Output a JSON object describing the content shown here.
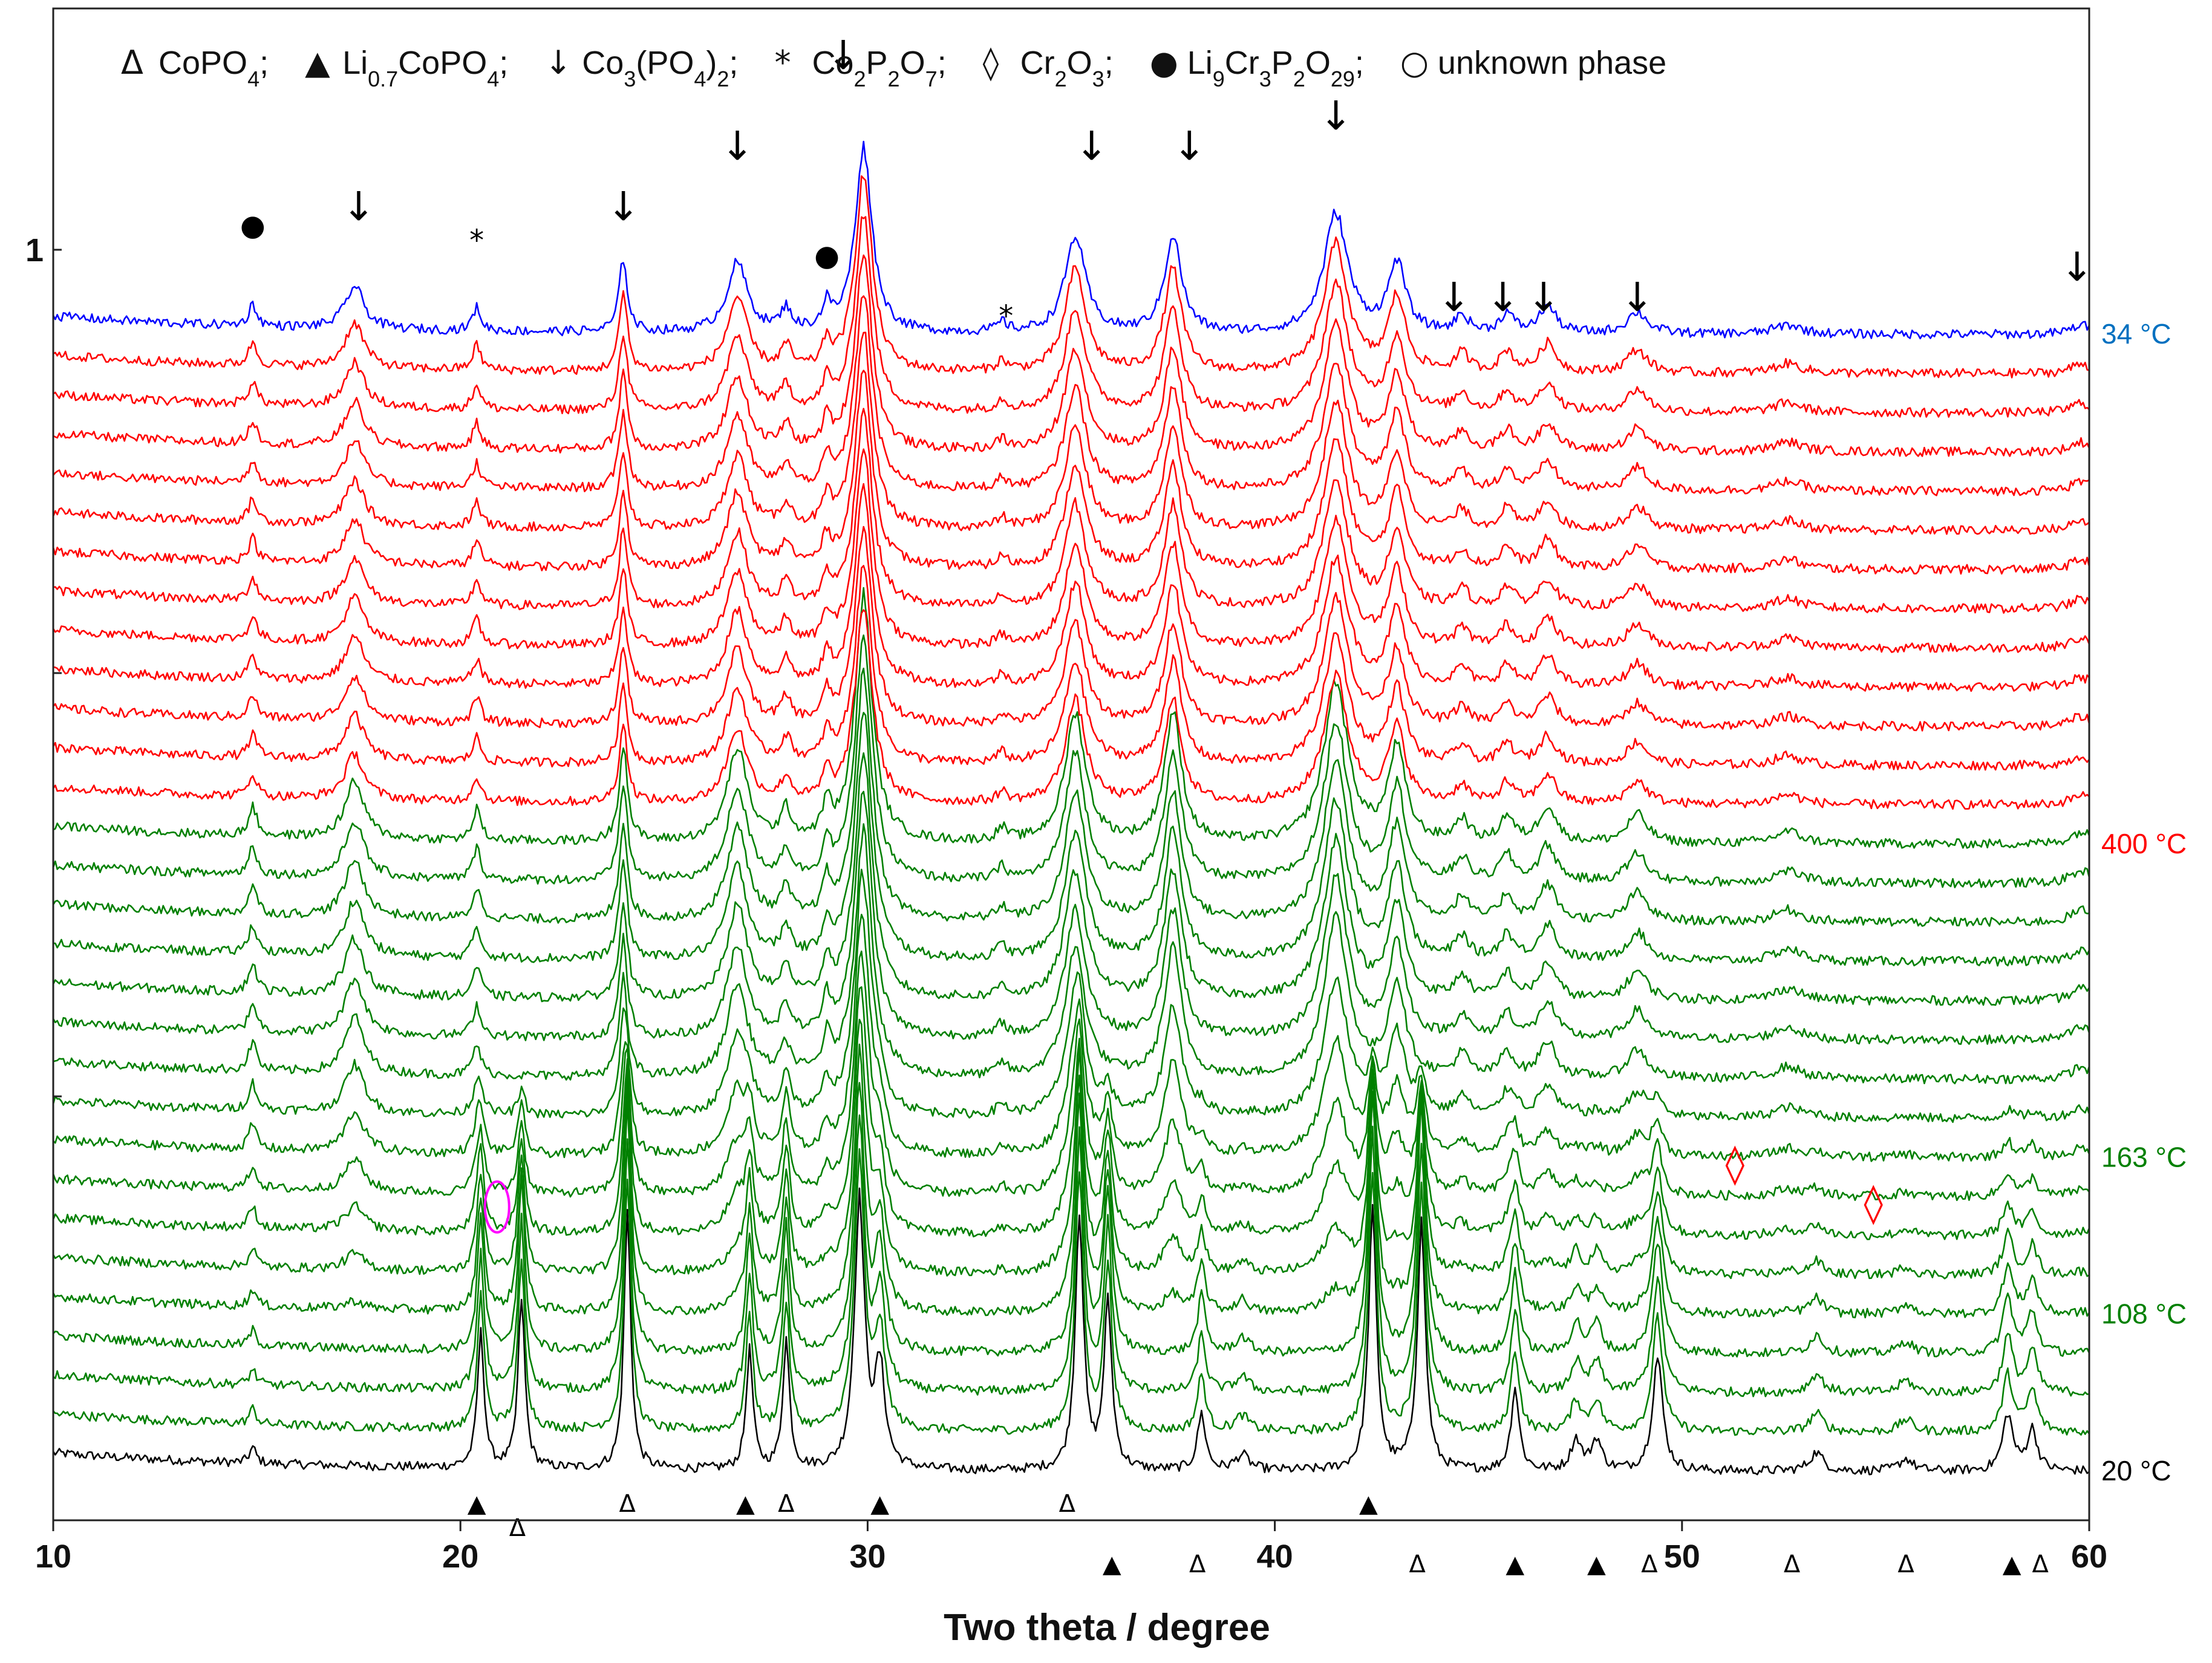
{
  "chart_data": {
    "type": "line",
    "title": "",
    "xlabel": "Two theta / degree",
    "ylabel": "",
    "xlim": [
      10,
      60
    ],
    "x_ticks": [
      "10",
      "20",
      "30",
      "40",
      "50",
      "60"
    ],
    "y_tick_label": "1",
    "series_count": 30,
    "series_groups": [
      {
        "name": "20 °C",
        "color": "#000000",
        "count": 1
      },
      {
        "name": "green (20–400 °C heating)",
        "color": "#008000",
        "count": 16
      },
      {
        "name": "red (400 °C and cooling)",
        "color": "#ff0000",
        "count": 12
      },
      {
        "name": "34 °C",
        "color": "#0000ff",
        "count": 1
      }
    ],
    "temperature_labels": [
      {
        "text": "34 °C",
        "color": "#0070c0",
        "series_index": 29
      },
      {
        "text": "400 °C",
        "color": "#ff0000",
        "series_index": 16
      },
      {
        "text": "163 °C",
        "color": "#008000",
        "series_index": 8
      },
      {
        "text": "108 °C",
        "color": "#008000",
        "series_index": 4
      },
      {
        "text": "20 °C",
        "color": "#000000",
        "series_index": 0
      }
    ],
    "legend": [
      {
        "symbol": "Δ",
        "color": "#000000",
        "label": "CoPO",
        "subs": [
          "4"
        ],
        "parts": [
          "CoPO",
          "4",
          ";"
        ]
      },
      {
        "symbol": "▲",
        "color": "#000000",
        "parts": [
          "Li",
          "0.7",
          "CoPO",
          "4",
          ";"
        ]
      },
      {
        "symbol": "↓",
        "color": "#000000",
        "parts": [
          "Co",
          "3",
          "(PO",
          "4",
          ")",
          "2",
          ";"
        ]
      },
      {
        "symbol": "*",
        "color": "#000000",
        "parts": [
          "Co",
          "2",
          "P",
          "2",
          "O",
          "7",
          ";"
        ]
      },
      {
        "symbol": "◊",
        "color": "#ff0000",
        "parts": [
          "Cr",
          "2",
          "O",
          "3",
          ";"
        ]
      },
      {
        "symbol": "●",
        "color": "#000000",
        "parts": [
          "Li",
          "9",
          "Cr",
          "3",
          "P",
          "2",
          "O",
          "29",
          ";"
        ]
      },
      {
        "symbol": "○",
        "color": "#ff00ff",
        "parts": [
          "unknown phase"
        ]
      }
    ],
    "peaks_ht": [
      {
        "pos": 14.9,
        "h": 0.28,
        "w": 0.12
      },
      {
        "pos": 17.4,
        "h": 0.55,
        "w": 0.28
      },
      {
        "pos": 20.4,
        "h": 0.3,
        "w": 0.12
      },
      {
        "pos": 24.0,
        "h": 0.95,
        "w": 0.12
      },
      {
        "pos": 26.8,
        "h": 0.9,
        "w": 0.3
      },
      {
        "pos": 28.0,
        "h": 0.28,
        "w": 0.15
      },
      {
        "pos": 29.0,
        "h": 0.32,
        "w": 0.12
      },
      {
        "pos": 29.9,
        "h": 2.4,
        "w": 0.25
      },
      {
        "pos": 33.3,
        "h": 0.12,
        "w": 0.15
      },
      {
        "pos": 35.1,
        "h": 1.25,
        "w": 0.3
      },
      {
        "pos": 37.5,
        "h": 1.25,
        "w": 0.25
      },
      {
        "pos": 41.5,
        "h": 1.55,
        "w": 0.35
      },
      {
        "pos": 43.0,
        "h": 0.9,
        "w": 0.25
      },
      {
        "pos": 44.6,
        "h": 0.22,
        "w": 0.2
      },
      {
        "pos": 45.7,
        "h": 0.25,
        "w": 0.2
      },
      {
        "pos": 46.7,
        "h": 0.35,
        "w": 0.25
      },
      {
        "pos": 48.9,
        "h": 0.28,
        "w": 0.3
      },
      {
        "pos": 52.6,
        "h": 0.12,
        "w": 0.4
      },
      {
        "pos": 59.8,
        "h": 0.12,
        "w": 0.3
      }
    ],
    "peaks_rt": [
      {
        "pos": 14.9,
        "h": 0.15,
        "w": 0.1
      },
      {
        "pos": 20.5,
        "h": 1.3,
        "w": 0.1
      },
      {
        "pos": 21.5,
        "h": 1.65,
        "w": 0.1
      },
      {
        "pos": 24.1,
        "h": 2.5,
        "w": 0.1
      },
      {
        "pos": 27.1,
        "h": 1.15,
        "w": 0.1
      },
      {
        "pos": 28.0,
        "h": 1.25,
        "w": 0.1
      },
      {
        "pos": 29.8,
        "h": 2.6,
        "w": 0.15
      },
      {
        "pos": 30.3,
        "h": 0.95,
        "w": 0.15
      },
      {
        "pos": 35.2,
        "h": 2.5,
        "w": 0.12
      },
      {
        "pos": 35.9,
        "h": 1.6,
        "w": 0.12
      },
      {
        "pos": 38.2,
        "h": 0.55,
        "w": 0.12
      },
      {
        "pos": 39.2,
        "h": 0.15,
        "w": 0.2
      },
      {
        "pos": 42.4,
        "h": 2.5,
        "w": 0.12
      },
      {
        "pos": 43.6,
        "h": 2.4,
        "w": 0.12
      },
      {
        "pos": 45.9,
        "h": 0.8,
        "w": 0.12
      },
      {
        "pos": 47.4,
        "h": 0.3,
        "w": 0.15
      },
      {
        "pos": 47.9,
        "h": 0.3,
        "w": 0.15
      },
      {
        "pos": 49.4,
        "h": 1.1,
        "w": 0.15
      },
      {
        "pos": 53.3,
        "h": 0.18,
        "w": 0.2
      },
      {
        "pos": 55.5,
        "h": 0.12,
        "w": 0.2
      },
      {
        "pos": 58.0,
        "h": 0.55,
        "w": 0.15
      },
      {
        "pos": 58.6,
        "h": 0.4,
        "w": 0.15
      }
    ],
    "annotations_top": [
      {
        "symbol": "●",
        "x": 14.9,
        "y_level": 0.85
      },
      {
        "symbol": "↓",
        "x": 17.5,
        "y_level": 0.86
      },
      {
        "symbol": "*",
        "x": 20.4,
        "y_level": 0.84
      },
      {
        "symbol": "↓",
        "x": 24.0,
        "y_level": 0.86
      },
      {
        "symbol": "↓",
        "x": 26.8,
        "y_level": 0.9
      },
      {
        "symbol": "●",
        "x": 29.0,
        "y_level": 0.83
      },
      {
        "symbol": "↓",
        "x": 29.4,
        "y_level": 0.96
      },
      {
        "symbol": "*",
        "x": 33.4,
        "y_level": 0.79
      },
      {
        "symbol": "↓",
        "x": 35.5,
        "y_level": 0.9
      },
      {
        "symbol": "↓",
        "x": 37.9,
        "y_level": 0.9
      },
      {
        "symbol": "↓",
        "x": 41.5,
        "y_level": 0.92
      },
      {
        "symbol": "↓",
        "x": 44.4,
        "y_level": 0.8
      },
      {
        "symbol": "↓",
        "x": 45.6,
        "y_level": 0.8
      },
      {
        "symbol": "↓",
        "x": 46.6,
        "y_level": 0.8
      },
      {
        "symbol": "↓",
        "x": 48.9,
        "y_level": 0.8
      },
      {
        "symbol": "↓",
        "x": 59.7,
        "y_level": 0.82
      }
    ],
    "annotations_bottom": [
      {
        "symbol": "▲",
        "x": 20.4,
        "row": 0
      },
      {
        "symbol": "Δ",
        "x": 21.4,
        "row": 1
      },
      {
        "symbol": "Δ",
        "x": 24.1,
        "row": 0
      },
      {
        "symbol": "▲",
        "x": 27.0,
        "row": 0
      },
      {
        "symbol": "Δ",
        "x": 28.0,
        "row": 0
      },
      {
        "symbol": "▲",
        "x": 30.3,
        "row": 0
      },
      {
        "symbol": "Δ",
        "x": 34.9,
        "row": 0
      },
      {
        "symbol": "▲",
        "x": 42.3,
        "row": 0
      },
      {
        "symbol": "▲",
        "x": 36.0,
        "row": 2
      },
      {
        "symbol": "Δ",
        "x": 38.1,
        "row": 2
      },
      {
        "symbol": "Δ",
        "x": 43.5,
        "row": 2
      },
      {
        "symbol": "▲",
        "x": 45.9,
        "row": 2
      },
      {
        "symbol": "▲",
        "x": 47.9,
        "row": 2
      },
      {
        "symbol": "Δ",
        "x": 49.2,
        "row": 2
      },
      {
        "symbol": "Δ",
        "x": 52.7,
        "row": 2
      },
      {
        "symbol": "Δ",
        "x": 55.5,
        "row": 2
      },
      {
        "symbol": "▲",
        "x": 58.1,
        "row": 2
      },
      {
        "symbol": "Δ",
        "x": 58.8,
        "row": 2
      }
    ],
    "annotations_cr2o3": [
      {
        "symbol": "◊",
        "x": 51.3,
        "series_index": 7
      },
      {
        "symbol": "◊",
        "x": 54.7,
        "series_index": 6
      }
    ],
    "annotation_unknown": {
      "symbol": "○",
      "x": 20.9,
      "series_index": 5
    }
  }
}
